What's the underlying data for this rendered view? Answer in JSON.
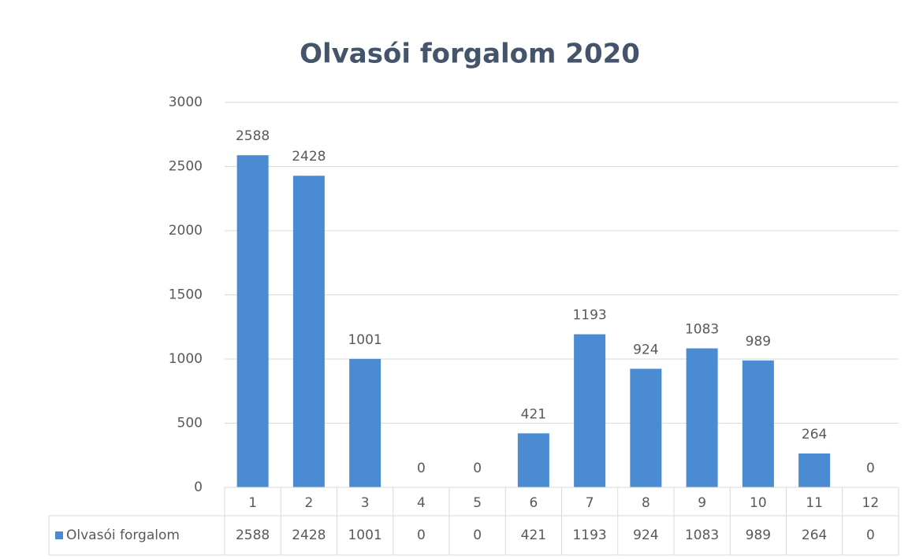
{
  "chart_data": {
    "type": "bar",
    "title": "Olvasói forgalom 2020",
    "categories": [
      "1",
      "2",
      "3",
      "4",
      "5",
      "6",
      "7",
      "8",
      "9",
      "10",
      "11",
      "12"
    ],
    "series": [
      {
        "name": "Olvasói forgalom",
        "color": "#4a8bd2",
        "values": [
          2588,
          2428,
          1001,
          0,
          0,
          421,
          1193,
          924,
          1083,
          989,
          264,
          0
        ]
      }
    ],
    "ylim": [
      0,
      3000
    ],
    "yticks": [
      0,
      500,
      1000,
      1500,
      2000,
      2500,
      3000
    ],
    "grid": true,
    "data_table": true
  }
}
